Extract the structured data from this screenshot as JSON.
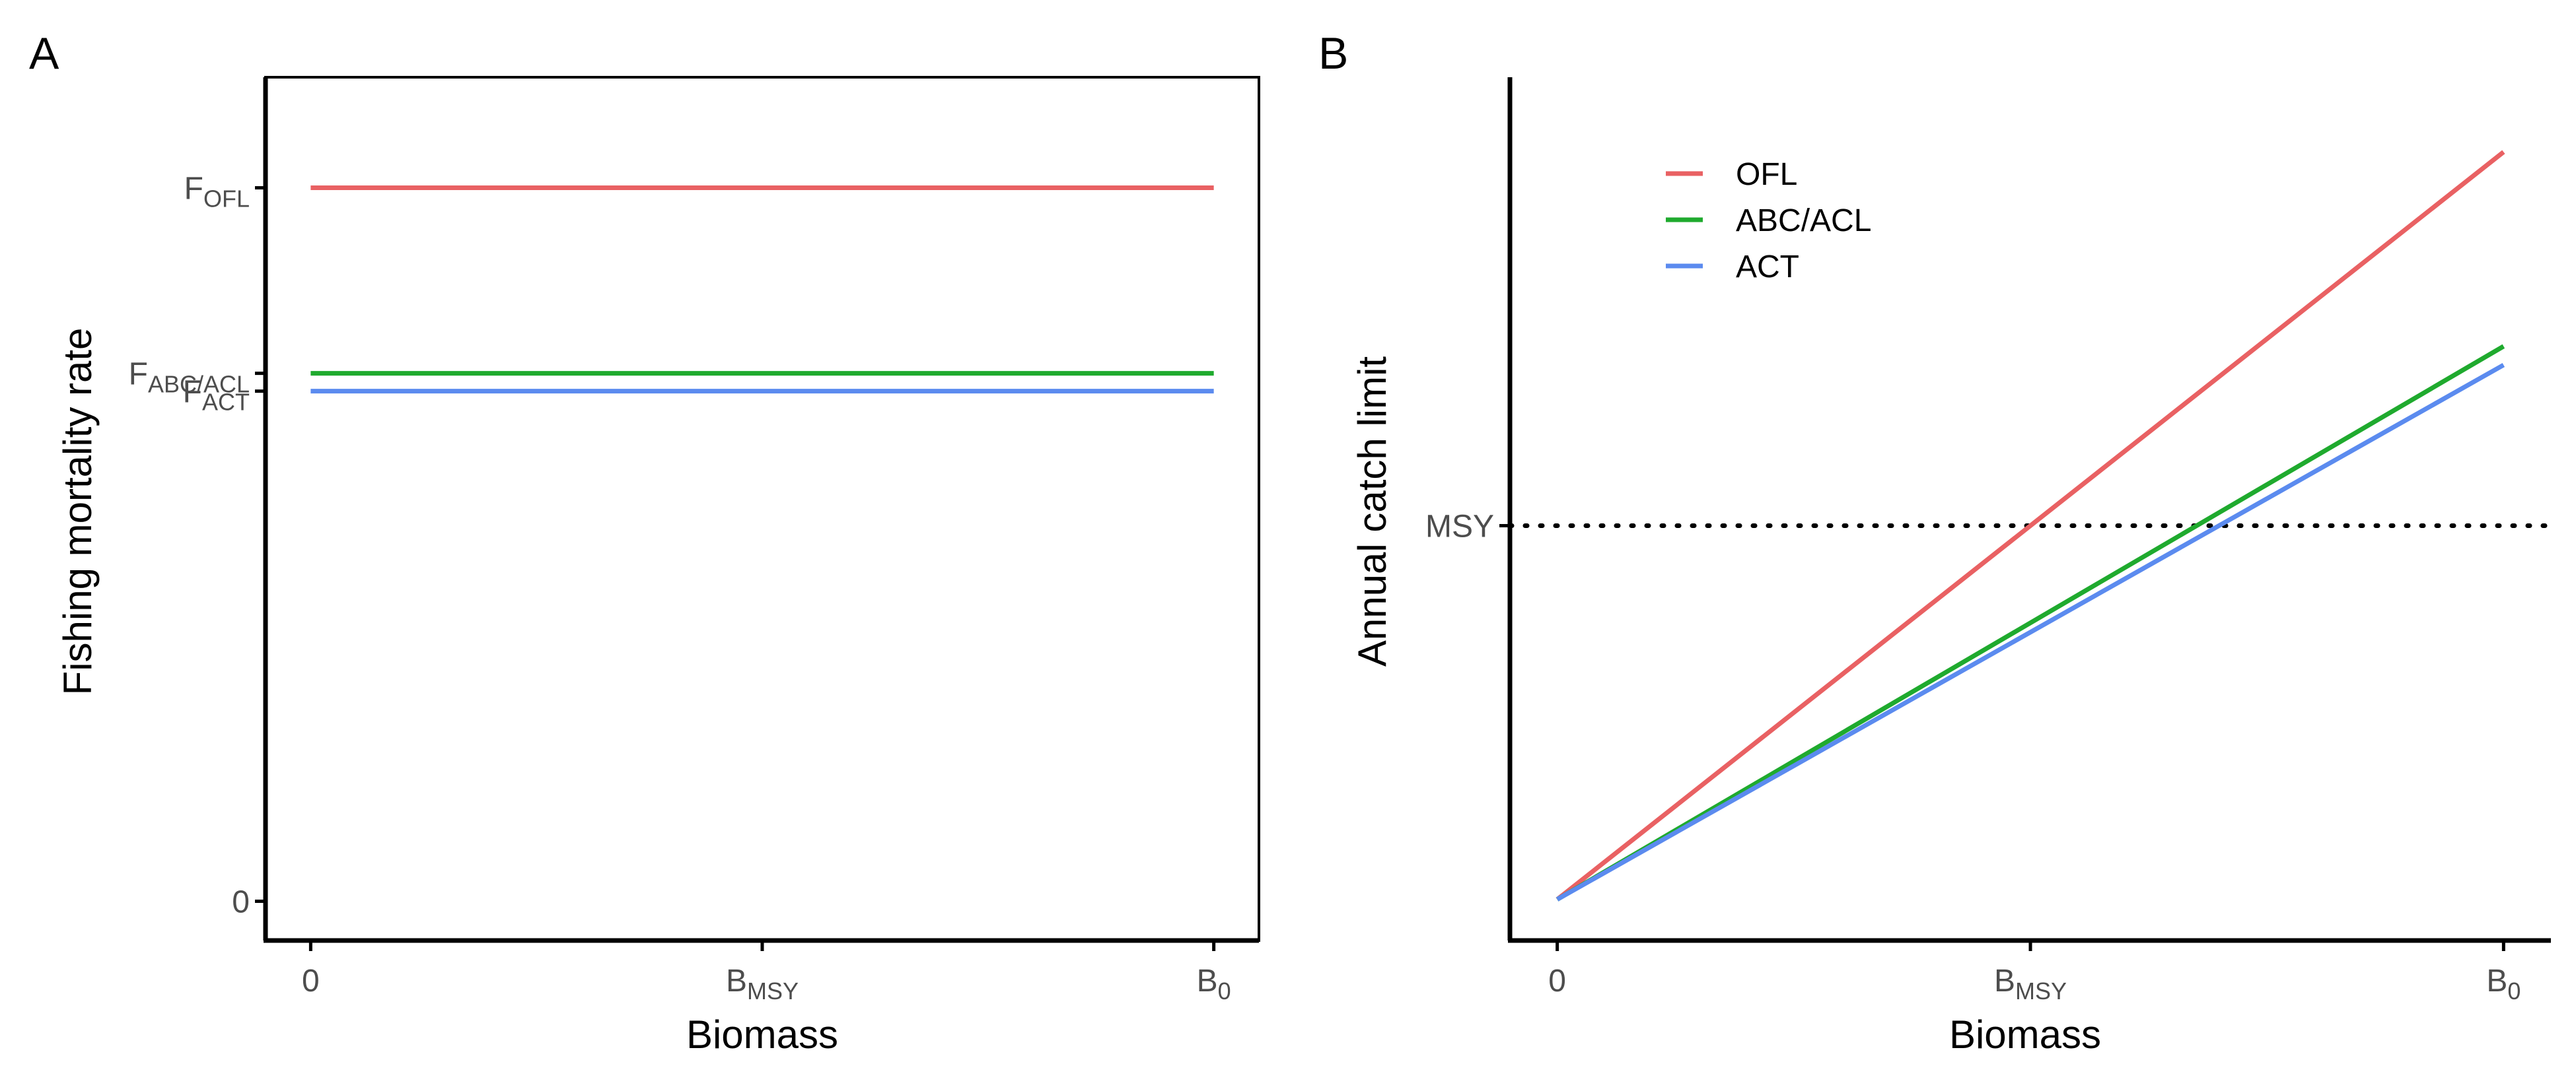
{
  "colors": {
    "ofl": "#E96163",
    "abc_acl": "#1FAA2E",
    "act": "#5B8BEF",
    "axis": "#000000",
    "tick_text": "#4d4d4d"
  },
  "chart_data": [
    {
      "panel_label": "A",
      "type": "line",
      "xlabel": "Biomass",
      "ylabel": "Fishing mortality rate",
      "x_ticks": [
        {
          "value": 0,
          "main": "0",
          "sub": ""
        },
        {
          "value": 1,
          "main": "B",
          "sub": "MSY"
        },
        {
          "value": 2,
          "main": "B",
          "sub": "0"
        }
      ],
      "y_ticks": [
        {
          "value": 0,
          "main": "0",
          "sub": ""
        },
        {
          "value": 0.715,
          "main": "F",
          "sub": "ACT"
        },
        {
          "value": 0.74,
          "main": "F",
          "sub": "ABC/ACL"
        },
        {
          "value": 1.0,
          "main": "F",
          "sub": "OFL"
        }
      ],
      "xlim": [
        -0.1,
        2.1
      ],
      "ylim": [
        -0.055,
        1.155
      ],
      "grid": false,
      "series": [
        {
          "name": "OFL",
          "color_key": "ofl",
          "x": [
            0,
            2
          ],
          "y": [
            1.0,
            1.0
          ]
        },
        {
          "name": "ABC/ACL",
          "color_key": "abc_acl",
          "x": [
            0,
            2
          ],
          "y": [
            0.74,
            0.74
          ]
        },
        {
          "name": "ACT",
          "color_key": "act",
          "x": [
            0,
            2
          ],
          "y": [
            0.715,
            0.715
          ]
        }
      ]
    },
    {
      "panel_label": "B",
      "type": "line",
      "xlabel": "Biomass",
      "ylabel": "Annual catch limit",
      "x_ticks": [
        {
          "value": 0,
          "main": "0",
          "sub": ""
        },
        {
          "value": 1,
          "main": "B",
          "sub": "MSY"
        },
        {
          "value": 2,
          "main": "B",
          "sub": "0"
        }
      ],
      "y_ticks": [
        {
          "value": 0.5,
          "main": "MSY",
          "sub": ""
        }
      ],
      "xlim": [
        -0.1,
        2.1
      ],
      "ylim": [
        -0.055,
        1.1
      ],
      "grid": false,
      "legend_position": "top-left",
      "reference_line": {
        "label": "MSY",
        "y": 0.5,
        "style": "dotted"
      },
      "series": [
        {
          "name": "OFL",
          "color_key": "ofl",
          "x": [
            0,
            2
          ],
          "y": [
            0,
            1.0
          ]
        },
        {
          "name": "ABC/ACL",
          "color_key": "abc_acl",
          "x": [
            0,
            2
          ],
          "y": [
            0,
            0.74
          ]
        },
        {
          "name": "ACT",
          "color_key": "act",
          "x": [
            0,
            2
          ],
          "y": [
            0,
            0.715
          ]
        }
      ]
    }
  ]
}
